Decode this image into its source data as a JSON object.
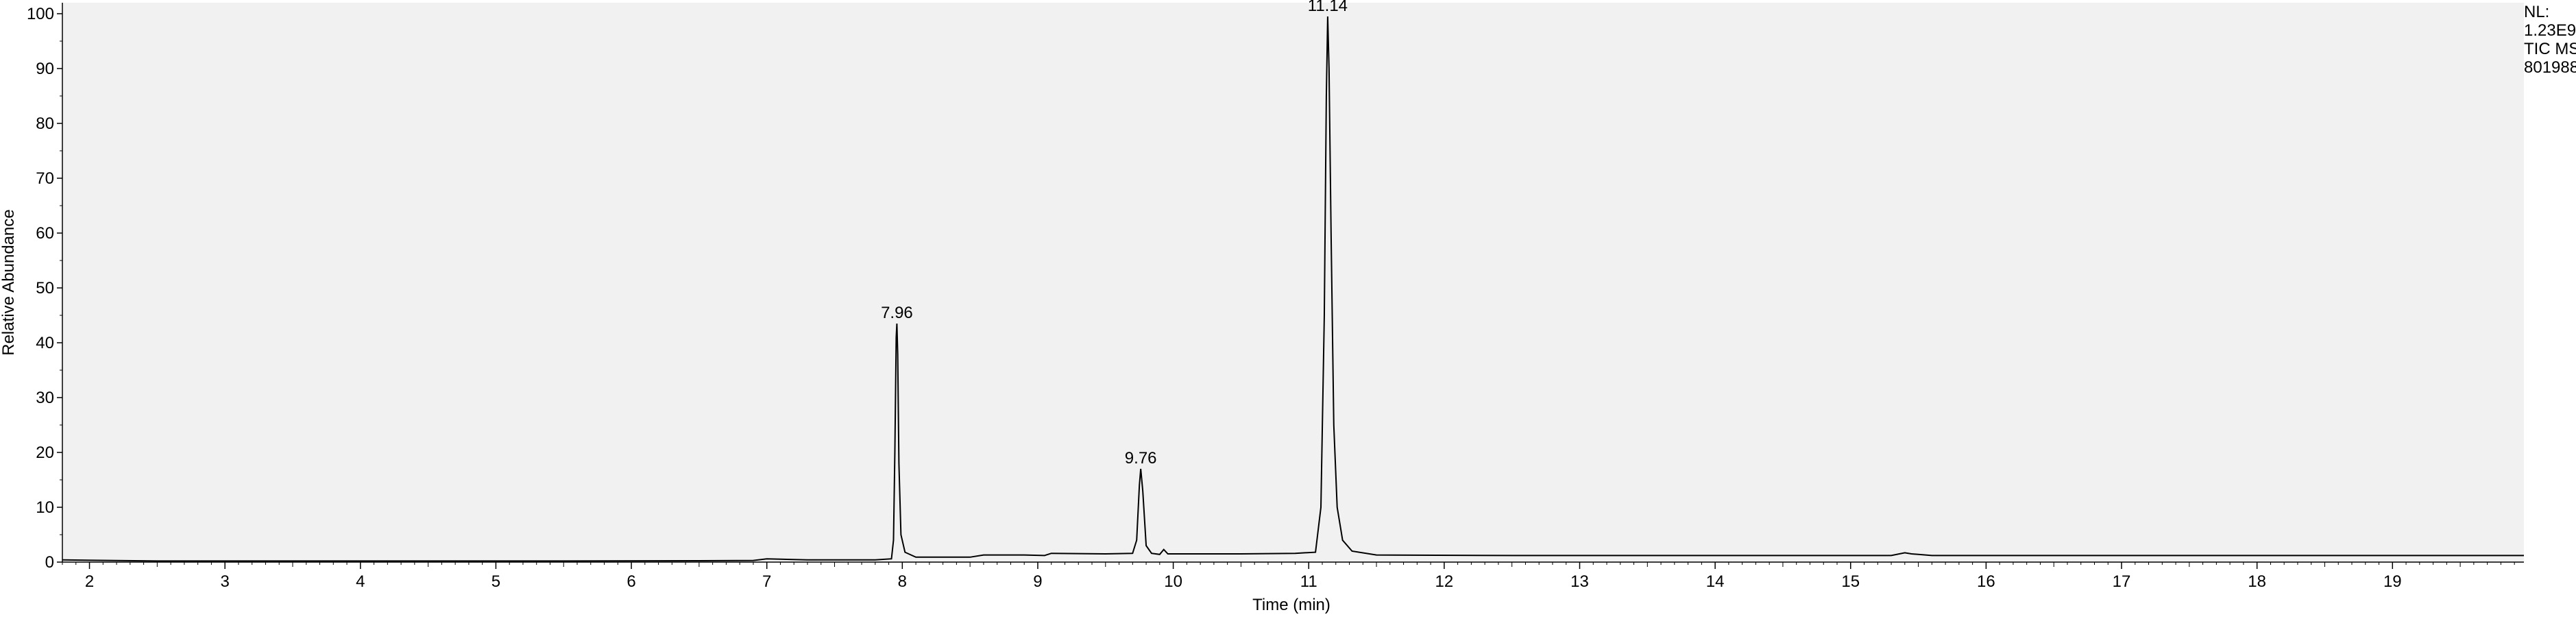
{
  "chart_data": {
    "type": "line",
    "xlabel": "Time (min)",
    "ylabel": "Relative Abundance",
    "xlim": [
      1.8,
      19.97
    ],
    "ylim": [
      0,
      102
    ],
    "x_ticks": [
      2,
      3,
      4,
      5,
      6,
      7,
      8,
      9,
      10,
      11,
      12,
      13,
      14,
      15,
      16,
      17,
      18,
      19
    ],
    "y_ticks": [
      0,
      10,
      20,
      30,
      40,
      50,
      60,
      70,
      80,
      90,
      100
    ],
    "grid": false,
    "colors": {
      "plot_background": "#f1f1f1",
      "trace": "#000000"
    },
    "series": [
      {
        "points": [
          [
            1.8,
            0.4
          ],
          [
            2.5,
            0.2
          ],
          [
            4.0,
            0.2
          ],
          [
            5.5,
            0.2
          ],
          [
            6.5,
            0.25
          ],
          [
            6.9,
            0.3
          ],
          [
            7.0,
            0.6
          ],
          [
            7.3,
            0.4
          ],
          [
            7.8,
            0.4
          ],
          [
            7.92,
            0.6
          ],
          [
            7.935,
            4
          ],
          [
            7.945,
            20
          ],
          [
            7.955,
            41
          ],
          [
            7.96,
            43.5
          ],
          [
            7.966,
            38
          ],
          [
            7.975,
            18
          ],
          [
            7.99,
            5
          ],
          [
            8.02,
            1.8
          ],
          [
            8.1,
            0.9
          ],
          [
            8.5,
            0.9
          ],
          [
            8.6,
            1.3
          ],
          [
            8.9,
            1.3
          ],
          [
            9.05,
            1.2
          ],
          [
            9.1,
            1.6
          ],
          [
            9.5,
            1.5
          ],
          [
            9.7,
            1.6
          ],
          [
            9.73,
            4
          ],
          [
            9.75,
            14
          ],
          [
            9.76,
            17
          ],
          [
            9.775,
            13
          ],
          [
            9.8,
            3
          ],
          [
            9.84,
            1.6
          ],
          [
            9.9,
            1.4
          ],
          [
            9.93,
            2.3
          ],
          [
            9.96,
            1.5
          ],
          [
            10.5,
            1.5
          ],
          [
            10.9,
            1.6
          ],
          [
            11.05,
            1.8
          ],
          [
            11.09,
            10
          ],
          [
            11.115,
            45
          ],
          [
            11.13,
            85
          ],
          [
            11.14,
            99.5
          ],
          [
            11.15,
            90
          ],
          [
            11.165,
            60
          ],
          [
            11.185,
            25
          ],
          [
            11.21,
            10
          ],
          [
            11.25,
            4
          ],
          [
            11.32,
            2
          ],
          [
            11.5,
            1.3
          ],
          [
            12.5,
            1.2
          ],
          [
            14.0,
            1.2
          ],
          [
            15.3,
            1.2
          ],
          [
            15.4,
            1.7
          ],
          [
            15.45,
            1.5
          ],
          [
            15.6,
            1.2
          ],
          [
            17.0,
            1.2
          ],
          [
            19.97,
            1.2
          ]
        ]
      }
    ],
    "peak_labels": [
      {
        "x": 7.96,
        "y": 43.5,
        "label": "7.96"
      },
      {
        "x": 9.76,
        "y": 17,
        "label": "9.76"
      },
      {
        "x": 11.14,
        "y": 99.5,
        "label": "11.14"
      }
    ]
  },
  "info_panel": {
    "lines": [
      "NL:",
      "1.23E9",
      "TIC  MS",
      "801988"
    ]
  }
}
